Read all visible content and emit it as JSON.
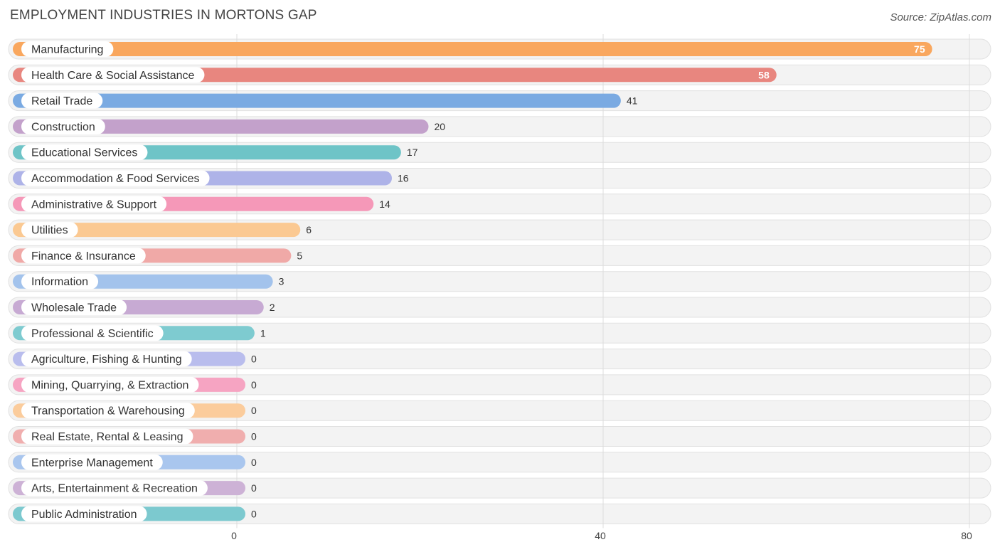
{
  "header": {
    "title": "EMPLOYMENT INDUSTRIES IN MORTONS GAP",
    "source": "Source: ZipAtlas.com"
  },
  "chart_data": {
    "type": "bar",
    "orientation": "horizontal",
    "title": "EMPLOYMENT INDUSTRIES IN MORTONS GAP",
    "xlim": [
      0,
      80
    ],
    "ticks": [
      0,
      40,
      80
    ],
    "grid": true,
    "categories": [
      "Manufacturing",
      "Health Care & Social Assistance",
      "Retail Trade",
      "Construction",
      "Educational Services",
      "Accommodation & Food Services",
      "Administrative & Support",
      "Utilities",
      "Finance & Insurance",
      "Information",
      "Wholesale Trade",
      "Professional & Scientific",
      "Agriculture, Fishing & Hunting",
      "Mining, Quarrying, & Extraction",
      "Transportation & Warehousing",
      "Real Estate, Rental & Leasing",
      "Enterprise Management",
      "Arts, Entertainment & Recreation",
      "Public Administration"
    ],
    "values": [
      75,
      58,
      41,
      20,
      17,
      16,
      14,
      6,
      5,
      3,
      2,
      1,
      0,
      0,
      0,
      0,
      0,
      0,
      0
    ],
    "colors": [
      "#f9a75e",
      "#e8867f",
      "#7aaae2",
      "#c3a1cb",
      "#6ec4c7",
      "#aeb3e8",
      "#f598b8",
      "#fbc992",
      "#f0a9a7",
      "#a3c3ec",
      "#c7aad3",
      "#7ecbd0",
      "#b9bded",
      "#f6a4c2",
      "#fbcc9c",
      "#f0aeae",
      "#a9c6ee",
      "#cdb2d6",
      "#7cc9cf"
    ]
  }
}
